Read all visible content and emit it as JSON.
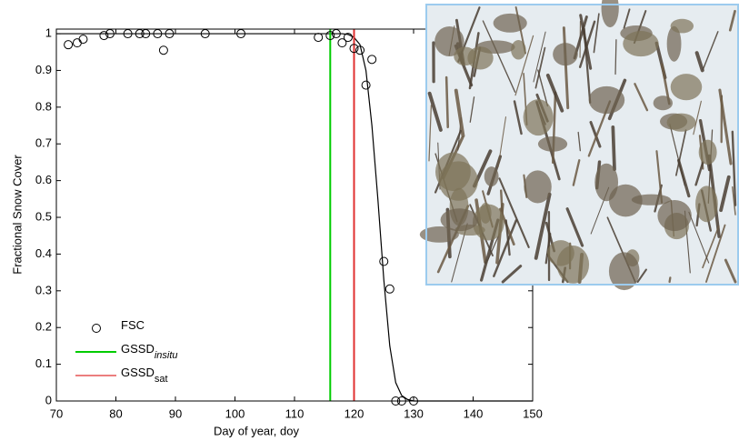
{
  "chart_data": {
    "type": "scatter",
    "xlabel": "Day of year, doy",
    "ylabel": "Fractional Snow Cover",
    "xlim": [
      70,
      150
    ],
    "xticks": [
      70,
      80,
      90,
      100,
      110,
      120,
      130,
      140,
      150
    ],
    "ylim": [
      0,
      1.0125
    ],
    "yticks": [
      0,
      0.1,
      0.2,
      0.3,
      0.4,
      0.5,
      0.6,
      0.7,
      0.8,
      0.9,
      1
    ],
    "legend": "lower left",
    "series": [
      {
        "name": "FSC",
        "kind": "points",
        "color": "#000000",
        "x": [
          72,
          73.5,
          74.5,
          78,
          79,
          82,
          84,
          85,
          87,
          88,
          89,
          95,
          101,
          114,
          116,
          117,
          118,
          119,
          120,
          121,
          122,
          123,
          125,
          126,
          127,
          128,
          130
        ],
        "values": [
          0.97,
          0.975,
          0.985,
          0.995,
          1,
          1,
          1,
          1,
          1,
          0.955,
          1,
          1,
          1,
          0.99,
          0.995,
          1,
          0.975,
          0.99,
          0.96,
          0.955,
          0.86,
          0.93,
          0.38,
          0.305,
          0,
          0,
          0
        ]
      },
      {
        "kind": "curve",
        "color": "#000000",
        "x": [
          70,
          118,
          119,
          120,
          121,
          122,
          123,
          124,
          125,
          126,
          127,
          128,
          129,
          130,
          150
        ],
        "values": [
          1,
          1,
          0.998,
          0.99,
          0.97,
          0.9,
          0.75,
          0.55,
          0.33,
          0.15,
          0.05,
          0.015,
          0.004,
          0,
          0
        ]
      },
      {
        "name": "GSSD",
        "subscript": "insitu",
        "kind": "vline",
        "color": "#00cc00",
        "x": 116
      },
      {
        "name": "GSSD",
        "subscript": "sat",
        "kind": "vline",
        "color": "#e03030",
        "x": 120
      }
    ]
  }
}
